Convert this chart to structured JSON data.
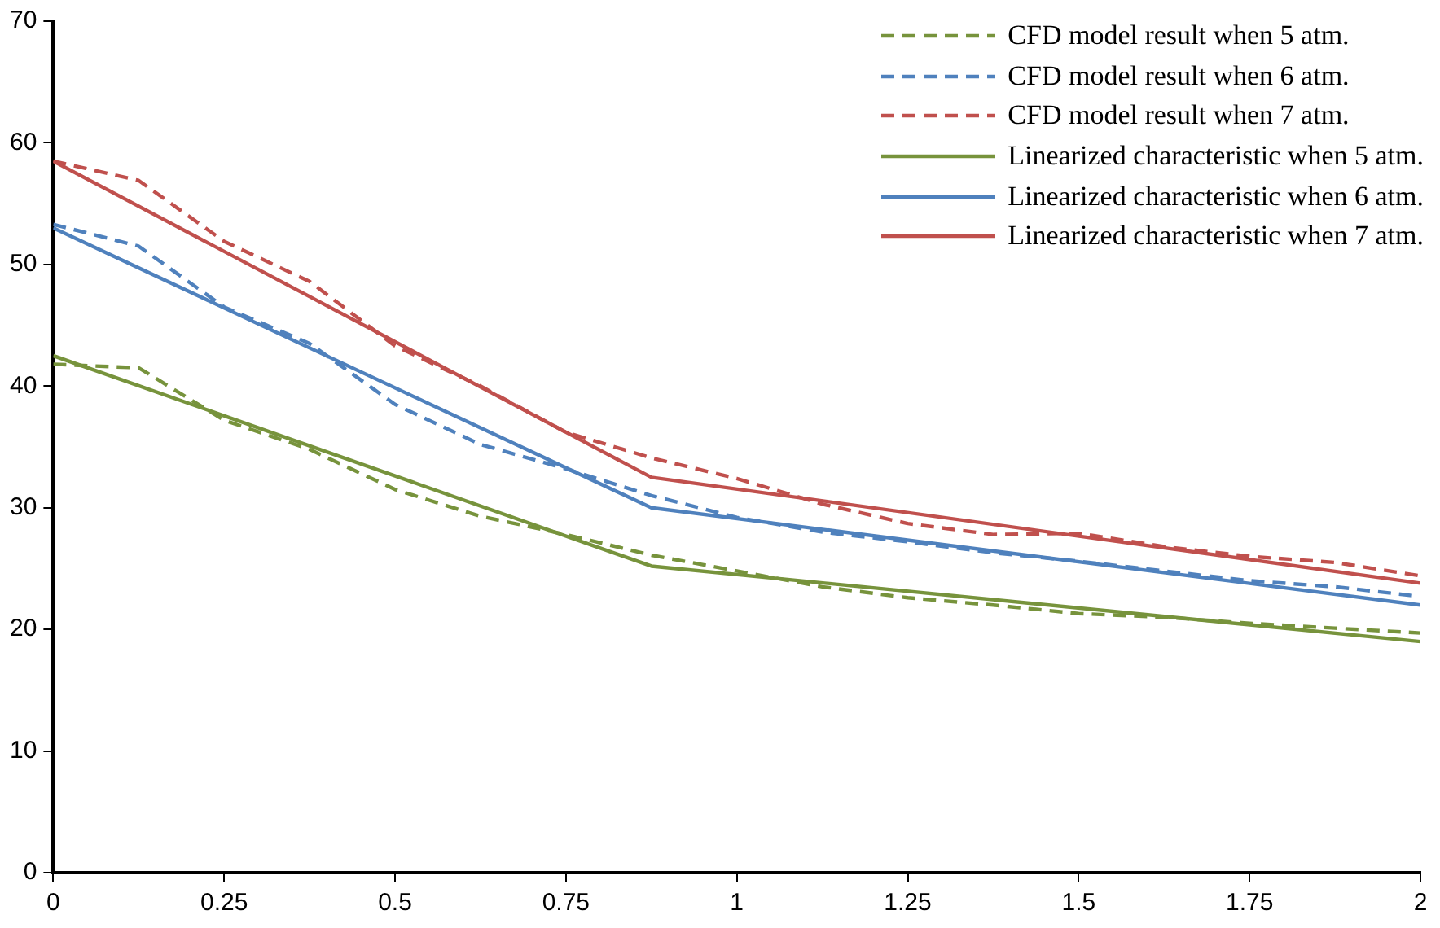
{
  "chart_data": {
    "type": "line",
    "xlim": [
      0,
      2
    ],
    "xticks": [
      0,
      0.25,
      0.5,
      0.75,
      1,
      1.25,
      1.5,
      1.75,
      2
    ],
    "ylim": [
      0,
      70
    ],
    "yticks": [
      0,
      10,
      20,
      30,
      40,
      50,
      60,
      70
    ],
    "grid": false,
    "legend": "top right",
    "marker": "none",
    "x": [
      0,
      0.125,
      0.25,
      0.375,
      0.5,
      0.625,
      0.75,
      0.875,
      1,
      1.125,
      1.25,
      1.375,
      1.5,
      1.625,
      1.75,
      1.875,
      2
    ],
    "series": [
      {
        "name": "CFD model result when 5 atm.",
        "color": "#77933c",
        "line_style": "dashed",
        "values": [
          41.8,
          41.5,
          37.2,
          34.8,
          31.5,
          29.3,
          27.8,
          26.1,
          24.8,
          23.5,
          22.6,
          22,
          21.3,
          21,
          20.5,
          20.1,
          19.7
        ]
      },
      {
        "name": "CFD model result when 6 atm.",
        "color": "#4f81bd",
        "line_style": "dashed",
        "values": [
          53.3,
          51.5,
          46.5,
          43.5,
          38.5,
          35.2,
          33.2,
          31,
          29.2,
          28,
          27.2,
          26.3,
          25.6,
          24.8,
          24,
          23.5,
          22.7
        ]
      },
      {
        "name": "CFD model result when 7 atm.",
        "color": "#c0504d",
        "line_style": "dashed",
        "values": [
          58.5,
          56.9,
          51.9,
          48.6,
          43.3,
          40,
          36.2,
          34.1,
          32.4,
          30.3,
          28.7,
          27.8,
          27.9,
          26.8,
          26,
          25.5,
          24.4
        ]
      },
      {
        "name": "Linearized characteristic when 5 atm.",
        "color": "#77933c",
        "line_style": "solid",
        "x": [
          0,
          0.875,
          2
        ],
        "values": [
          42.5,
          25.2,
          19
        ]
      },
      {
        "name": "Linearized characteristic when 6 atm.",
        "color": "#4f81bd",
        "line_style": "solid",
        "x": [
          0,
          0.875,
          2
        ],
        "values": [
          53,
          30,
          22
        ]
      },
      {
        "name": "Linearized characteristic when 7 atm.",
        "color": "#c0504d",
        "line_style": "solid",
        "x": [
          0,
          0.875,
          2
        ],
        "values": [
          58.5,
          32.5,
          23.8
        ]
      }
    ]
  }
}
